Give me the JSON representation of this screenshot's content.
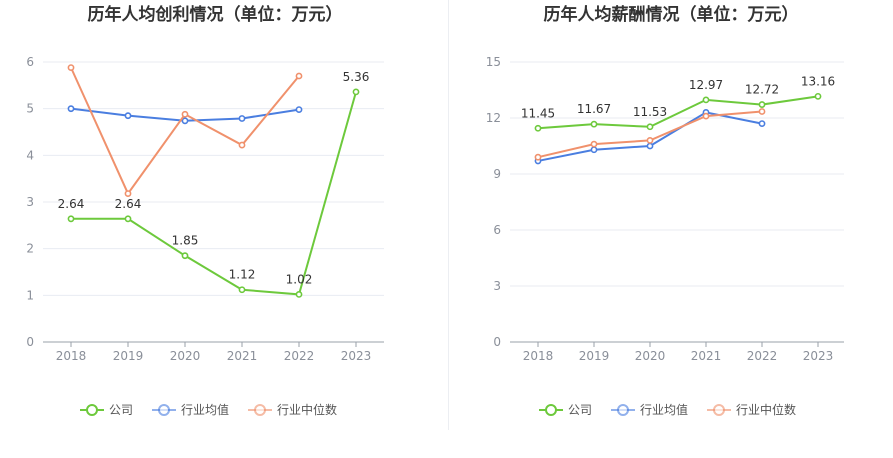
{
  "chart_data": [
    {
      "type": "line",
      "title": "历年人均创利情况（单位：万元）",
      "categories": [
        "2018",
        "2019",
        "2020",
        "2021",
        "2022",
        "2023"
      ],
      "ylim": [
        0,
        6
      ],
      "yticks": [
        0,
        1,
        2,
        3,
        4,
        5,
        6
      ],
      "grid": true,
      "legend": "bottom",
      "series": [
        {
          "name": "公司",
          "color": "#6dc93c",
          "values": [
            2.64,
            2.64,
            1.85,
            1.12,
            1.02,
            5.36
          ],
          "labels": [
            "2.64",
            "2.64",
            "1.85",
            "1.12",
            "1.02",
            "5.36"
          ]
        },
        {
          "name": "行业均值",
          "color": "#4a7ee0",
          "values": [
            5.0,
            4.85,
            4.74,
            4.79,
            4.98,
            null
          ],
          "labels": []
        },
        {
          "name": "行业中位数",
          "color": "#f0916c",
          "values": [
            5.88,
            3.18,
            4.88,
            4.22,
            5.7,
            null
          ],
          "labels": []
        }
      ]
    },
    {
      "type": "line",
      "title": "历年人均薪酬情况（单位：万元）",
      "categories": [
        "2018",
        "2019",
        "2020",
        "2021",
        "2022",
        "2023"
      ],
      "ylim": [
        0,
        15
      ],
      "yticks": [
        0,
        3,
        6,
        9,
        12,
        15
      ],
      "grid": true,
      "legend": "bottom",
      "series": [
        {
          "name": "公司",
          "color": "#6dc93c",
          "values": [
            11.45,
            11.67,
            11.53,
            12.97,
            12.72,
            13.16
          ],
          "labels": [
            "11.45",
            "11.67",
            "11.53",
            "12.97",
            "12.72",
            "13.16"
          ]
        },
        {
          "name": "行业均值",
          "color": "#4a7ee0",
          "values": [
            9.7,
            10.3,
            10.5,
            12.3,
            11.7,
            null
          ],
          "labels": []
        },
        {
          "name": "行业中位数",
          "color": "#f0916c",
          "values": [
            9.9,
            10.6,
            10.8,
            12.1,
            12.35,
            null
          ],
          "labels": []
        }
      ]
    }
  ]
}
